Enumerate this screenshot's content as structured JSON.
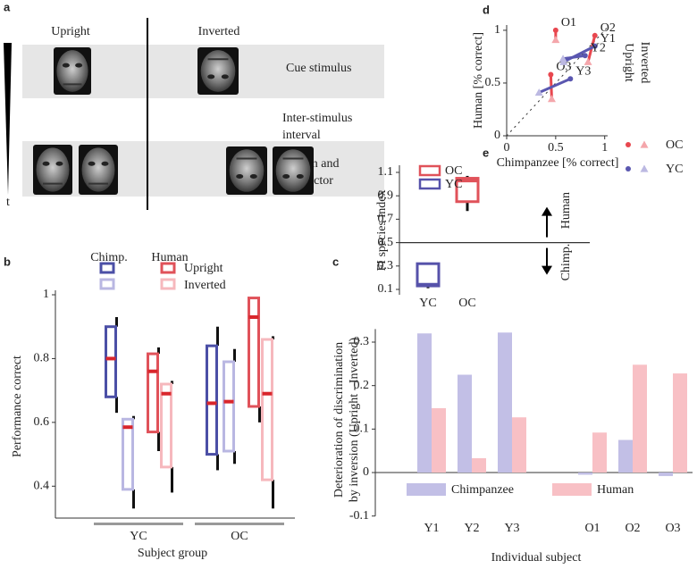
{
  "panel_labels": [
    "a",
    "b",
    "c",
    "d",
    "e"
  ],
  "diagram": {
    "columns": [
      "Upright",
      "Inverted"
    ],
    "rows": [
      [
        "Cue stimulus"
      ],
      [
        "Inter-stimulus",
        "interval"
      ],
      [
        "Match and",
        "distractor"
      ]
    ],
    "time_label": "t"
  },
  "chart_data": [
    {
      "type": "box",
      "categories": [
        "YC",
        "OC"
      ],
      "xlabel": "Subject group",
      "ylabel": "Performance correct",
      "ylim": [
        0.3,
        1.0
      ],
      "yticks": [
        0.4,
        0.6,
        0.8,
        1
      ],
      "median_color": "#d9262c",
      "legend": {
        "columns": [
          "Chimp.",
          "Human"
        ],
        "rows": [
          "Upright",
          "Inverted"
        ]
      },
      "series": [
        {
          "color": "#4b4fa6",
          "low": [
            0.63,
            0.45
          ],
          "q1": [
            0.68,
            0.5
          ],
          "median": [
            0.8,
            0.66
          ],
          "q3": [
            0.9,
            0.84
          ],
          "high": [
            0.93,
            0.9
          ]
        },
        {
          "color": "#b9b7e2",
          "low": [
            0.33,
            0.47
          ],
          "q1": [
            0.39,
            0.51
          ],
          "median": [
            0.585,
            0.665
          ],
          "q3": [
            0.61,
            0.79
          ],
          "high": [
            0.62,
            0.83
          ]
        },
        {
          "color": "#e0525a",
          "low": [
            0.51,
            0.6
          ],
          "q1": [
            0.57,
            0.65
          ],
          "median": [
            0.76,
            0.93
          ],
          "q3": [
            0.815,
            0.99
          ],
          "high": [
            0.835,
            0.99
          ]
        },
        {
          "color": "#f6b8bd",
          "low": [
            0.38,
            0.33
          ],
          "q1": [
            0.46,
            0.42
          ],
          "median": [
            0.69,
            0.69
          ],
          "q3": [
            0.72,
            0.86
          ],
          "high": [
            0.73,
            0.87
          ]
        }
      ]
    },
    {
      "type": "bar",
      "categories": [
        "Y1",
        "Y2",
        "Y3",
        null,
        "O1",
        "O2",
        "O3"
      ],
      "xlabel": "Individual subject",
      "ylabel": [
        "Deterioration of discrimination",
        "by inversion (Upright - Inverted)"
      ],
      "ylim": [
        -0.1,
        0.33
      ],
      "yticks": [
        -0.1,
        0,
        0.1,
        0.2,
        0.3
      ],
      "series": [
        {
          "name": "Chimpanzee",
          "color": "#c2bfe6",
          "values": [
            0.32,
            0.225,
            0.322,
            null,
            -0.005,
            0.075,
            -0.008
          ]
        },
        {
          "name": "Human",
          "color": "#f8c0c5",
          "values": [
            0.148,
            0.033,
            0.127,
            null,
            0.092,
            0.248,
            0.228
          ]
        }
      ]
    },
    {
      "type": "scatter",
      "xlabel": "Chimpanzee [% correct]",
      "ylabel": "Human [% correct]",
      "xlim": [
        0,
        1.03
      ],
      "ylim": [
        0,
        1.05
      ],
      "xticks": [
        0,
        0.5,
        1
      ],
      "yticks": [
        0,
        0.5,
        1
      ],
      "identity_line": true,
      "legend": [
        "Upright",
        "Inverted"
      ],
      "series": [
        {
          "name": "OC",
          "color": "#e8474f",
          "inverted_color": "#f4a6ab",
          "labels": [
            "O1",
            "O2",
            "O3"
          ],
          "upright_x": [
            0.5,
            0.9,
            0.45
          ],
          "upright_y": [
            1.0,
            0.95,
            0.58
          ],
          "inverted_x": [
            0.5,
            0.83,
            0.46
          ],
          "inverted_y": [
            0.91,
            0.7,
            0.35
          ]
        },
        {
          "name": "YC",
          "color": "#5a57b0",
          "inverted_color": "#bcb9e2",
          "labels": [
            "Y1",
            "Y2",
            "Y3"
          ],
          "upright_x": [
            0.9,
            0.8,
            0.65
          ],
          "upright_y": [
            0.85,
            0.76,
            0.54
          ],
          "inverted_x": [
            0.58,
            0.575,
            0.33
          ],
          "inverted_y": [
            0.7,
            0.73,
            0.41
          ]
        }
      ]
    },
    {
      "type": "box",
      "categories": [
        "YC",
        "OC"
      ],
      "ylabel": "FI species index",
      "ylim": [
        0.1,
        1.1
      ],
      "yticks": [
        0.1,
        0.3,
        0.5,
        0.7,
        0.9,
        1.1
      ],
      "hline": 0.5,
      "annotations": [
        "Human",
        "Chimp."
      ],
      "series": [
        {
          "name": "OC",
          "color": "#e0525a"
        },
        {
          "name": "YC",
          "color": "#5652aa"
        }
      ],
      "low": [
        0.11,
        0.77
      ],
      "q1": [
        0.13,
        0.85
      ],
      "median": [
        0.14,
        1.03
      ],
      "q3": [
        0.32,
        1.05
      ],
      "high": [
        0.32,
        1.07
      ]
    }
  ]
}
